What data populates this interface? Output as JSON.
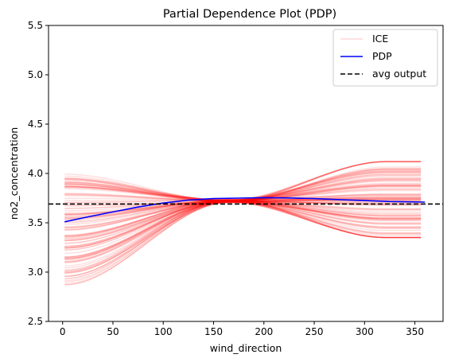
{
  "chart_data": {
    "type": "line",
    "title": "Partial Dependence Plot (PDP)",
    "xlabel": "wind_direction",
    "ylabel": "no2_concentration",
    "xlim": [
      -14,
      378
    ],
    "ylim": [
      2.5,
      5.5
    ],
    "x_ticks": [
      0,
      50,
      100,
      150,
      200,
      250,
      300,
      350
    ],
    "y_ticks": [
      2.5,
      3.0,
      3.5,
      4.0,
      4.5,
      5.0,
      5.5
    ],
    "y_tick_labels": [
      "2.5",
      "3.0",
      "3.5",
      "4.0",
      "4.5",
      "5.0",
      "5.5"
    ],
    "grid": false,
    "legend": {
      "placement": "top-right",
      "entries": [
        {
          "label": "ICE",
          "color": "#ffd6d6",
          "style": "solid"
        },
        {
          "label": "PDP",
          "color": "#0000ff",
          "style": "solid"
        },
        {
          "label": "avg output",
          "color": "#000000",
          "style": "dashed"
        }
      ]
    },
    "ice": {
      "color": "#ff0000",
      "opacity": 0.13,
      "x_start": 2,
      "x_end": 360,
      "convergence_x": 165,
      "convergence_y": 3.72,
      "start_range": [
        2.87,
        4.0
      ],
      "end_range": [
        3.35,
        4.12
      ],
      "curve_count": 120
    },
    "series": [
      {
        "name": "PDP",
        "color": "#0000ff",
        "x": [
          2,
          25,
          50,
          75,
          100,
          125,
          150,
          175,
          200,
          225,
          250,
          275,
          300,
          325,
          360
        ],
        "y": [
          3.51,
          3.56,
          3.61,
          3.66,
          3.7,
          3.73,
          3.745,
          3.75,
          3.755,
          3.752,
          3.745,
          3.735,
          3.725,
          3.715,
          3.71
        ]
      },
      {
        "name": "avg output",
        "color": "#000000",
        "x": [
          -14,
          378
        ],
        "y": [
          3.69,
          3.69
        ]
      }
    ]
  }
}
